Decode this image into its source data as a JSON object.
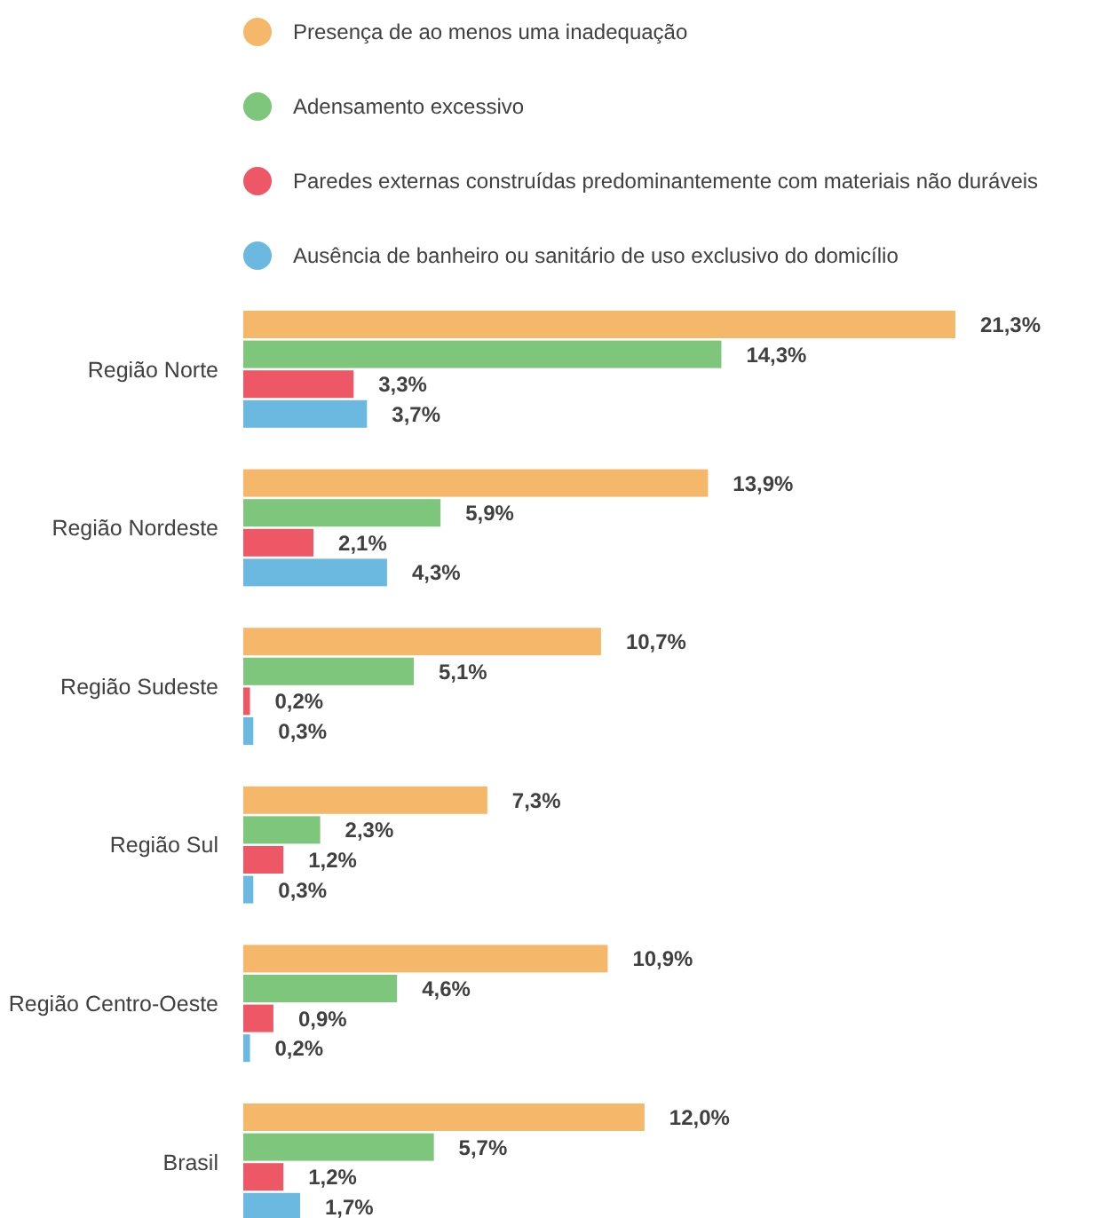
{
  "chart_data": {
    "type": "bar",
    "orientation": "horizontal",
    "legend": "top",
    "categories": [
      "Região Norte",
      "Região Nordeste",
      "Região Sudeste",
      "Região Sul",
      "Região Centro-Oeste",
      "Brasil"
    ],
    "series": [
      {
        "name": "Presença de ao menos uma inadequação",
        "color": "#f5b76a",
        "values": [
          21.3,
          13.9,
          10.7,
          7.3,
          10.9,
          12.0
        ],
        "value_labels": [
          "21,3%",
          "13,9%",
          "10,7%",
          "7,3%",
          "10,9%",
          "12,0%"
        ]
      },
      {
        "name": "Adensamento excessivo",
        "color": "#7dc67b",
        "values": [
          14.3,
          5.9,
          5.1,
          2.3,
          4.6,
          5.7
        ],
        "value_labels": [
          "14,3%",
          "5,9%",
          "5,1%",
          "2,3%",
          "4,6%",
          "5,7%"
        ]
      },
      {
        "name": "Paredes externas construídas predominantemente com materiais não duráveis",
        "color": "#ee5866",
        "values": [
          3.3,
          2.1,
          0.2,
          1.2,
          0.9,
          1.2
        ],
        "value_labels": [
          "3,3%",
          "2,1%",
          "0,2%",
          "1,2%",
          "0,9%",
          "1,2%"
        ]
      },
      {
        "name": "Ausência de banheiro ou sanitário de uso exclusivo do domicílio",
        "color": "#6bb8e0",
        "values": [
          3.7,
          4.3,
          0.3,
          0.3,
          0.2,
          1.7
        ],
        "value_labels": [
          "3,7%",
          "4,3%",
          "0,3%",
          "0,3%",
          "0,2%",
          "1,7%"
        ]
      }
    ]
  }
}
